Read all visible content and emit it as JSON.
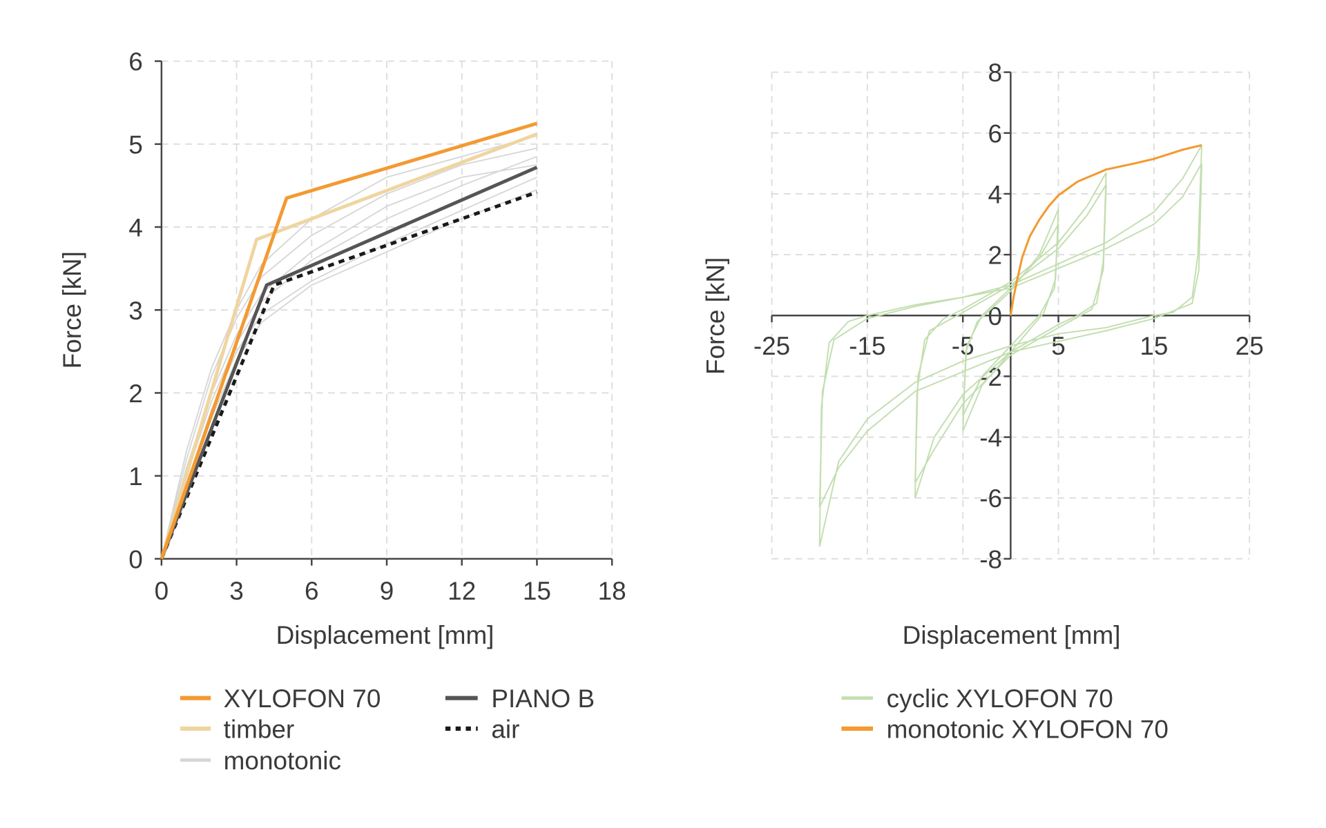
{
  "chart_data": [
    {
      "type": "line",
      "xlabel": "Displacement [mm]",
      "ylabel": "Force [kN]",
      "xlim": [
        0,
        18
      ],
      "ylim": [
        0,
        6
      ],
      "xticks": [
        "0",
        "3",
        "6",
        "9",
        "12",
        "15",
        "18"
      ],
      "yticks": [
        "0",
        "1",
        "2",
        "3",
        "4",
        "5",
        "6"
      ],
      "grid": true,
      "legend_position": "bottom",
      "series": [
        {
          "name": "XYLOFON 70",
          "color": "#f39a32",
          "style": "solid",
          "points": [
            [
              0,
              0
            ],
            [
              5,
              4.35
            ],
            [
              15,
              5.25
            ]
          ]
        },
        {
          "name": "timber",
          "color": "#efd5a0",
          "style": "solid",
          "points": [
            [
              0,
              0
            ],
            [
              3.8,
              3.85
            ],
            [
              15,
              5.12
            ]
          ]
        },
        {
          "name": "PIANO B",
          "color": "#555555",
          "style": "solid",
          "points": [
            [
              0,
              0
            ],
            [
              4.2,
              3.3
            ],
            [
              15,
              4.72
            ]
          ]
        },
        {
          "name": "air",
          "color": "#1a1a1a",
          "style": "dotted",
          "points": [
            [
              0,
              0
            ],
            [
              4.5,
              3.3
            ],
            [
              15,
              4.42
            ]
          ]
        },
        {
          "name": "monotonic",
          "color": "#d6d6d6",
          "style": "thin",
          "curves": [
            [
              [
                0,
                0
              ],
              [
                1,
                1.2
              ],
              [
                2,
                2.2
              ],
              [
                3,
                2.9
              ],
              [
                4,
                3.4
              ],
              [
                6,
                3.9
              ],
              [
                9,
                4.4
              ],
              [
                12,
                4.75
              ],
              [
                15,
                4.95
              ]
            ],
            [
              [
                0,
                0
              ],
              [
                1,
                1.0
              ],
              [
                2,
                1.9
              ],
              [
                3,
                2.6
              ],
              [
                4,
                3.1
              ],
              [
                6,
                3.6
              ],
              [
                9,
                4.1
              ],
              [
                12,
                4.5
              ],
              [
                15,
                4.85
              ]
            ],
            [
              [
                0,
                0
              ],
              [
                1,
                0.9
              ],
              [
                2,
                1.8
              ],
              [
                3,
                2.5
              ],
              [
                4,
                2.95
              ],
              [
                6,
                3.35
              ],
              [
                9,
                3.8
              ],
              [
                12,
                4.2
              ],
              [
                15,
                4.6
              ]
            ],
            [
              [
                0,
                0
              ],
              [
                1,
                1.3
              ],
              [
                2,
                2.3
              ],
              [
                3,
                3.0
              ],
              [
                4,
                3.55
              ],
              [
                6,
                4.1
              ],
              [
                9,
                4.6
              ],
              [
                12,
                4.85
              ],
              [
                15,
                5.1
              ]
            ],
            [
              [
                0,
                0
              ],
              [
                1,
                0.85
              ],
              [
                2,
                1.7
              ],
              [
                3,
                2.4
              ],
              [
                4,
                2.85
              ],
              [
                6,
                3.3
              ],
              [
                9,
                3.7
              ],
              [
                12,
                4.1
              ],
              [
                15,
                4.45
              ]
            ],
            [
              [
                0,
                0
              ],
              [
                1,
                1.1
              ],
              [
                2,
                2.0
              ],
              [
                3,
                2.7
              ],
              [
                4,
                3.2
              ],
              [
                6,
                3.7
              ],
              [
                9,
                4.25
              ],
              [
                12,
                4.6
              ],
              [
                15,
                4.75
              ]
            ]
          ]
        }
      ]
    },
    {
      "type": "line",
      "xlabel": "Displacement [mm]",
      "ylabel": "Force [kN]",
      "xlim": [
        -25,
        25
      ],
      "ylim": [
        -8,
        8
      ],
      "xticks": [
        "-25",
        "-15",
        "-5",
        "5",
        "15",
        "25"
      ],
      "yticks": [
        "-8",
        "-6",
        "-4",
        "-2",
        "0",
        "2",
        "4",
        "6",
        "8"
      ],
      "grid": true,
      "legend_position": "bottom",
      "series": [
        {
          "name": "cyclic XYLOFON 70",
          "color": "#c3deb0",
          "loops": [
            [
              [
                20,
                5.6
              ],
              [
                19.6,
                2
              ],
              [
                19,
                0.6
              ],
              [
                17,
                0.1
              ],
              [
                15,
                0
              ],
              [
                10,
                -0.4
              ],
              [
                5,
                -0.6
              ],
              [
                0,
                -1
              ],
              [
                -5,
                -1.5
              ],
              [
                -10,
                -2.2
              ],
              [
                -15,
                -3.4
              ],
              [
                -18,
                -4.8
              ],
              [
                -20,
                -7.6
              ],
              [
                -19.8,
                -3
              ],
              [
                -19,
                -0.9
              ],
              [
                -17,
                -0.2
              ],
              [
                -15,
                0
              ],
              [
                -10,
                0.35
              ],
              [
                -5,
                0.6
              ],
              [
                0,
                1
              ],
              [
                5,
                1.7
              ],
              [
                10,
                2.4
              ],
              [
                15,
                3.4
              ],
              [
                18,
                4.5
              ],
              [
                20,
                5.6
              ]
            ],
            [
              [
                20,
                5.0
              ],
              [
                19.7,
                1.5
              ],
              [
                19,
                0.4
              ],
              [
                15,
                -0.1
              ],
              [
                10,
                -0.5
              ],
              [
                0,
                -1.2
              ],
              [
                -10,
                -2.5
              ],
              [
                -15,
                -3.8
              ],
              [
                -18,
                -5.0
              ],
              [
                -20,
                -6.3
              ],
              [
                -19.7,
                -2.5
              ],
              [
                -18.5,
                -0.8
              ],
              [
                -15,
                -0.1
              ],
              [
                -10,
                0.3
              ],
              [
                0,
                0.9
              ],
              [
                10,
                2.2
              ],
              [
                15,
                3.0
              ],
              [
                18,
                3.9
              ],
              [
                20,
                5.0
              ]
            ],
            [
              [
                10,
                4.7
              ],
              [
                9.7,
                1.8
              ],
              [
                9,
                0.4
              ],
              [
                7,
                0
              ],
              [
                5,
                -0.3
              ],
              [
                0,
                -1.2
              ],
              [
                -5,
                -2.6
              ],
              [
                -8,
                -4.0
              ],
              [
                -10,
                -6.0
              ],
              [
                -9.8,
                -2.5
              ],
              [
                -9,
                -0.8
              ],
              [
                -7,
                -0.1
              ],
              [
                -5,
                0.2
              ],
              [
                0,
                1.1
              ],
              [
                5,
                2.4
              ],
              [
                8,
                3.6
              ],
              [
                10,
                4.7
              ]
            ],
            [
              [
                10,
                4.3
              ],
              [
                9.7,
                1.5
              ],
              [
                8.5,
                0.2
              ],
              [
                5,
                -0.4
              ],
              [
                0,
                -1.3
              ],
              [
                -5,
                -2.9
              ],
              [
                -8,
                -4.4
              ],
              [
                -10,
                -5.5
              ],
              [
                -9.7,
                -2.0
              ],
              [
                -8.5,
                -0.5
              ],
              [
                -5,
                0.1
              ],
              [
                0,
                1.0
              ],
              [
                5,
                2.2
              ],
              [
                8,
                3.3
              ],
              [
                10,
                4.3
              ]
            ],
            [
              [
                5,
                3.5
              ],
              [
                4.7,
                1.2
              ],
              [
                3.5,
                0.1
              ],
              [
                0,
                -1.2
              ],
              [
                -3,
                -2.3
              ],
              [
                -5,
                -3.8
              ],
              [
                -4.7,
                -1.2
              ],
              [
                -3.5,
                -0.2
              ],
              [
                0,
                0.8
              ],
              [
                3,
                2.0
              ],
              [
                5,
                3.5
              ]
            ],
            [
              [
                5,
                3.0
              ],
              [
                4.6,
                0.9
              ],
              [
                3,
                0
              ],
              [
                0,
                -1.0
              ],
              [
                -3,
                -2.0
              ],
              [
                -5,
                -3.3
              ],
              [
                -4.6,
                -1.0
              ],
              [
                -3,
                0
              ],
              [
                0,
                0.9
              ],
              [
                3,
                1.9
              ],
              [
                5,
                3.0
              ]
            ]
          ]
        },
        {
          "name": "monotonic XYLOFON 70",
          "color": "#f39a32",
          "points": [
            [
              0,
              0
            ],
            [
              0.3,
              0.6
            ],
            [
              0.7,
              1.2
            ],
            [
              1.2,
              1.9
            ],
            [
              2,
              2.6
            ],
            [
              3,
              3.15
            ],
            [
              4,
              3.6
            ],
            [
              5,
              3.95
            ],
            [
              7,
              4.4
            ],
            [
              10,
              4.8
            ],
            [
              13,
              5.0
            ],
            [
              15,
              5.15
            ],
            [
              18,
              5.45
            ],
            [
              20,
              5.6
            ]
          ]
        }
      ]
    }
  ]
}
